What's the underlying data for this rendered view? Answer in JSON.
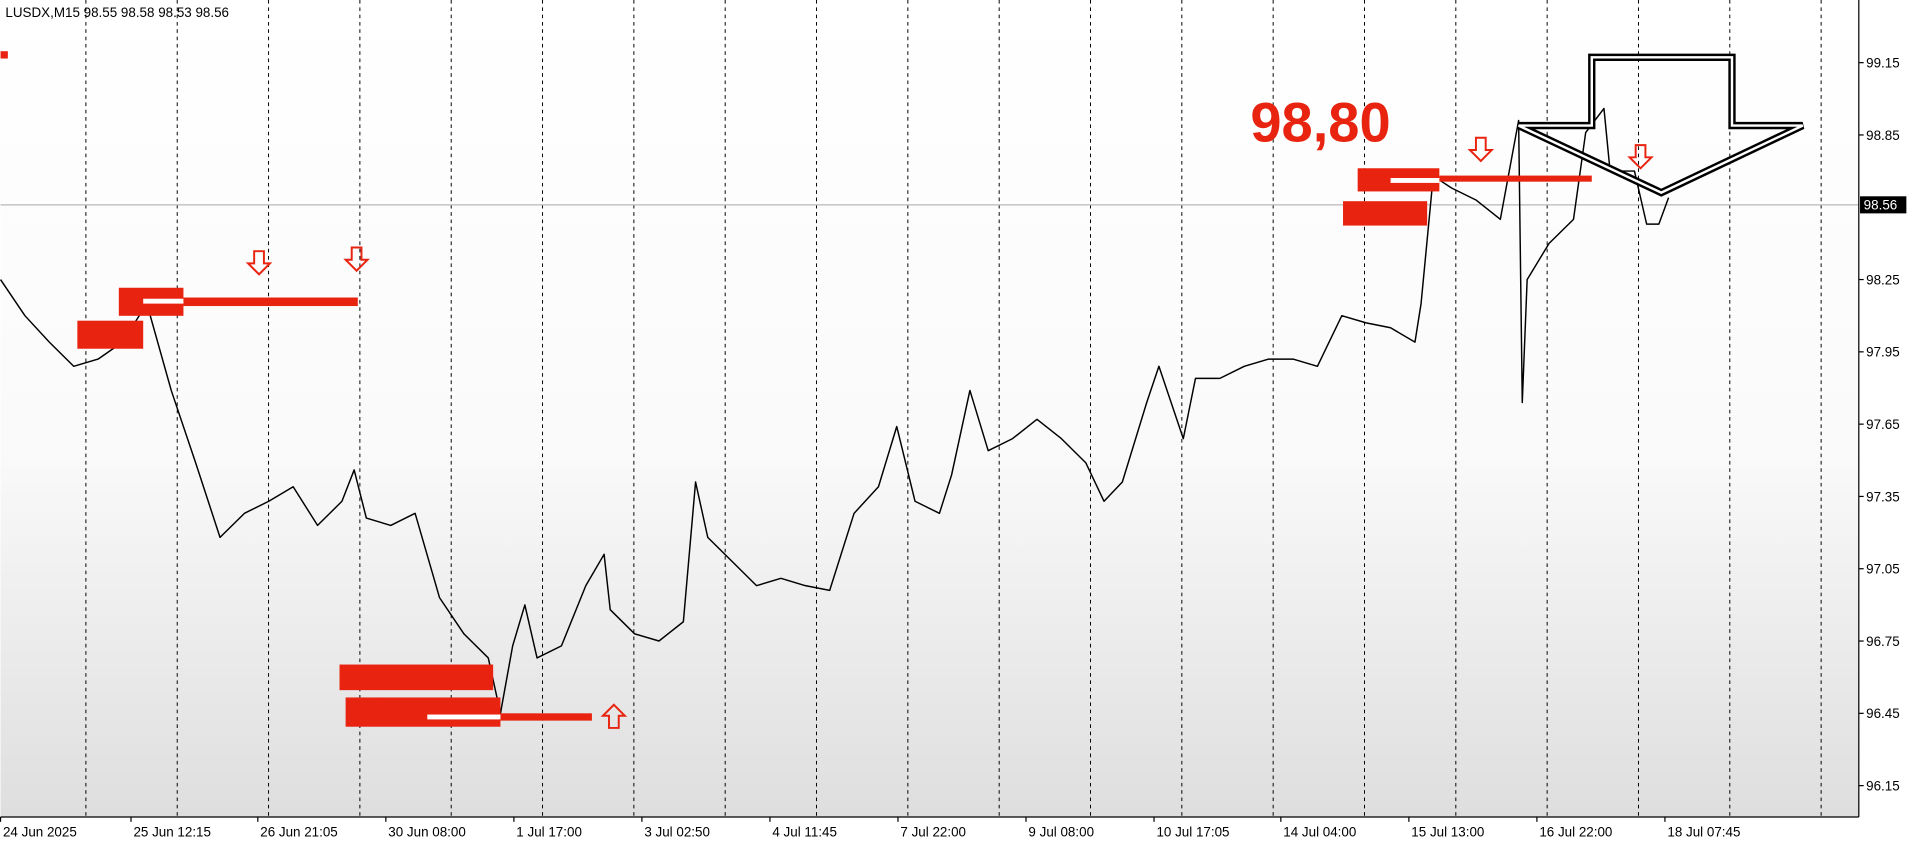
{
  "chart_data": {
    "type": "line",
    "title": "LUSDX,M15  98.55 98.58 98.53 98.56",
    "annotation": "98,80",
    "current_price": 98.56,
    "color": "#000000",
    "x": [
      0,
      2,
      4,
      6,
      8,
      10,
      12,
      14,
      16,
      18,
      20,
      22,
      24,
      26,
      28,
      29,
      30,
      32,
      34,
      36,
      38,
      40,
      41,
      42,
      43,
      44,
      46,
      48,
      49.5,
      50,
      52,
      54,
      56,
      57,
      58,
      60,
      62,
      64,
      66,
      68,
      70,
      72,
      73.5,
      75,
      77,
      78,
      79.5,
      81,
      83,
      85,
      87,
      89,
      90.5,
      92,
      94,
      95,
      97,
      98,
      100,
      102,
      104,
      106,
      108,
      110,
      112,
      114,
      116,
      116.5,
      117.5,
      119,
      121,
      123,
      124.5,
      124.8,
      125.2,
      127,
      129,
      130,
      131.5,
      132,
      134,
      135,
      136,
      136.8
    ],
    "values": [
      98.25,
      98.1,
      97.99,
      97.89,
      97.92,
      97.99,
      98.15,
      97.79,
      97.49,
      97.18,
      97.28,
      97.33,
      97.39,
      97.23,
      97.33,
      97.46,
      97.26,
      97.23,
      97.28,
      96.93,
      96.78,
      96.68,
      96.45,
      96.73,
      96.9,
      96.68,
      96.73,
      96.98,
      97.11,
      96.88,
      96.78,
      96.75,
      96.83,
      97.41,
      97.18,
      97.08,
      96.98,
      97.01,
      96.98,
      96.96,
      97.28,
      97.39,
      97.64,
      97.33,
      97.28,
      97.44,
      97.79,
      97.54,
      97.59,
      97.67,
      97.59,
      97.49,
      97.33,
      97.41,
      97.74,
      97.89,
      97.59,
      97.84,
      97.84,
      97.89,
      97.92,
      97.92,
      97.89,
      98.1,
      98.07,
      98.05,
      97.99,
      98.15,
      98.68,
      98.63,
      98.58,
      98.5,
      98.91,
      97.74,
      98.25,
      98.4,
      98.5,
      98.86,
      98.96,
      98.7,
      98.7,
      98.48,
      98.48,
      98.59
    ],
    "xlim": [
      0,
      152.4
    ],
    "xticks": [
      {
        "value": 0,
        "label": "24 Jun 2025"
      },
      {
        "value": 10.7,
        "label": "25 Jun 12:15"
      },
      {
        "value": 21.1,
        "label": "26 Jun 21:05"
      },
      {
        "value": 31.6,
        "label": "30 Jun 08:00"
      },
      {
        "value": 42.1,
        "label": "1 Jul 17:00"
      },
      {
        "value": 52.6,
        "label": "3 Jul 02:50"
      },
      {
        "value": 63.1,
        "label": "4 Jul 11:45"
      },
      {
        "value": 73.6,
        "label": "7 Jul 22:00"
      },
      {
        "value": 84.1,
        "label": "9 Jul 08:00"
      },
      {
        "value": 94.6,
        "label": "10 Jul 17:05"
      },
      {
        "value": 105.0,
        "label": "14 Jul 04:00"
      },
      {
        "value": 115.5,
        "label": "15 Jul 13:00"
      },
      {
        "value": 126.0,
        "label": "16 Jul 22:00"
      },
      {
        "value": 136.5,
        "label": "18 Jul 07:45"
      }
    ],
    "ylim": [
      96.02,
      99.41
    ],
    "yticks": [
      96.15,
      96.45,
      96.75,
      97.05,
      97.35,
      97.65,
      97.95,
      98.25,
      98.85,
      99.15
    ]
  }
}
